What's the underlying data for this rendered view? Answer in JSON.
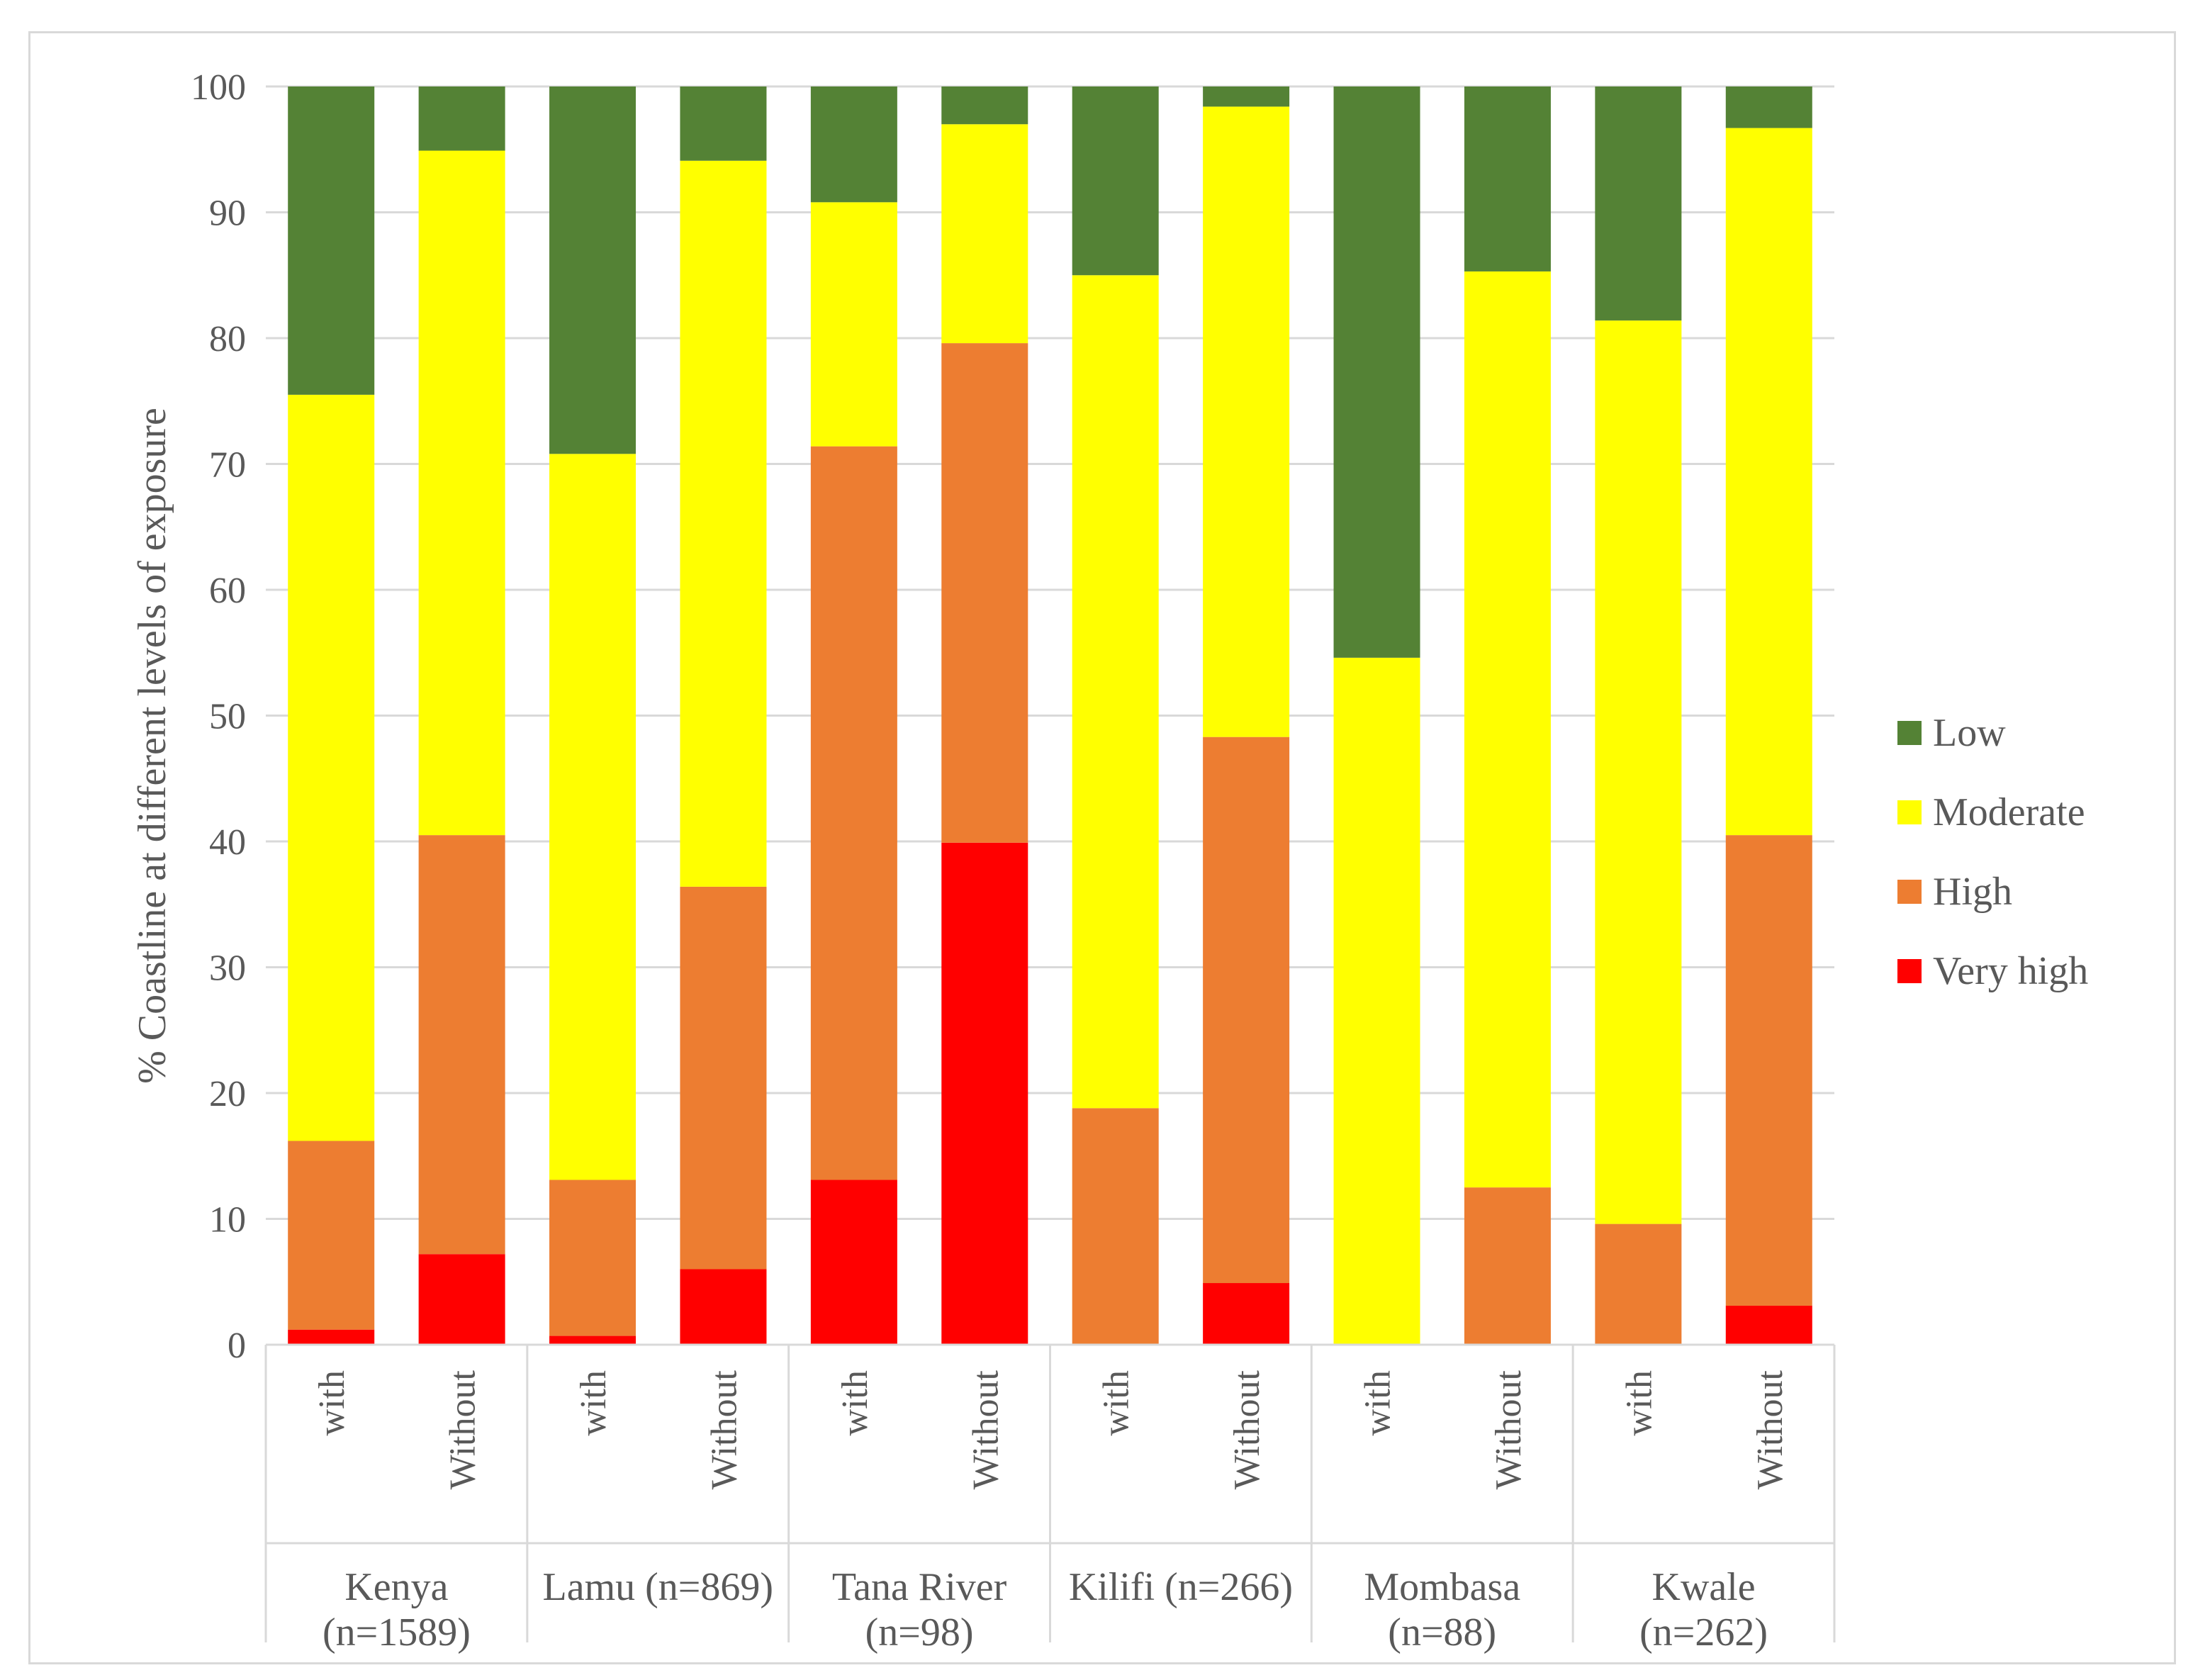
{
  "chart_data": {
    "type": "bar",
    "stacked": true,
    "title": "",
    "xlabel": "",
    "ylabel": "% Coastline at different levels of exposure",
    "ylim": [
      0,
      100
    ],
    "yticks": [
      0,
      10,
      20,
      30,
      40,
      50,
      60,
      70,
      80,
      90,
      100
    ],
    "grid": true,
    "legend_position": "right",
    "groups": [
      {
        "label": "Kenya\n(n=1589)",
        "lines": [
          "Kenya",
          "(n=1589)"
        ]
      },
      {
        "label": "Lamu (n=869)",
        "lines": [
          "Lamu (n=869)"
        ]
      },
      {
        "label": "Tana River\n(n=98)",
        "lines": [
          "Tana River",
          "(n=98)"
        ]
      },
      {
        "label": "Kilifi (n=266)",
        "lines": [
          "Kilifi (n=266)"
        ]
      },
      {
        "label": "Mombasa\n(n=88)",
        "lines": [
          "Mombasa",
          "(n=88)"
        ]
      },
      {
        "label": "Kwale\n(n=262)",
        "lines": [
          "Kwale",
          "(n=262)"
        ]
      }
    ],
    "categories": [
      "with",
      "Without",
      "with",
      "Without",
      "with",
      "Without",
      "with",
      "Without",
      "with",
      "Without",
      "with",
      "Without"
    ],
    "series": [
      {
        "name": "Very high",
        "color": "#ff0000",
        "values": [
          1.2,
          7.2,
          0.7,
          6.0,
          13.1,
          39.9,
          0.0,
          4.9,
          0.0,
          0.0,
          0.0,
          3.1
        ]
      },
      {
        "name": "High",
        "color": "#ed7d31",
        "values": [
          15.0,
          33.3,
          12.4,
          30.4,
          58.3,
          39.7,
          18.8,
          43.4,
          0.0,
          12.5,
          9.6,
          37.4
        ]
      },
      {
        "name": "Moderate",
        "color": "#ffff00",
        "values": [
          59.3,
          54.4,
          57.7,
          57.7,
          19.4,
          17.4,
          66.2,
          50.1,
          54.6,
          72.8,
          71.8,
          56.2
        ]
      },
      {
        "name": "Low",
        "color": "#548235",
        "values": [
          24.5,
          5.1,
          29.2,
          5.9,
          9.2,
          3.0,
          15.0,
          1.6,
          45.4,
          14.7,
          18.6,
          3.3
        ]
      }
    ],
    "legend_order": [
      "Low",
      "Moderate",
      "High",
      "Very high"
    ]
  }
}
